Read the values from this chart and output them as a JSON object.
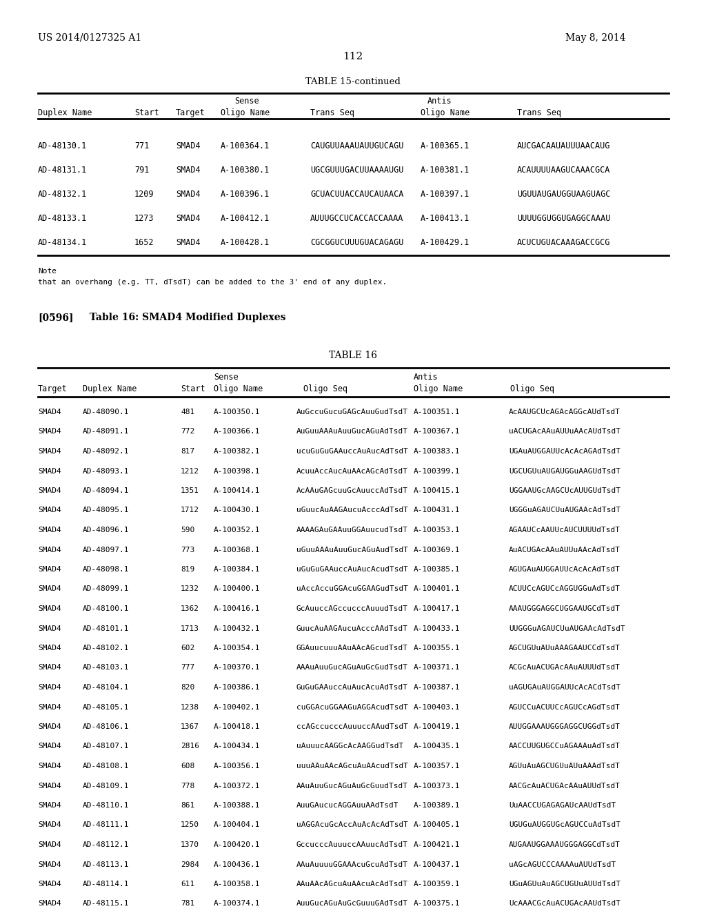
{
  "page_header_left": "US 2014/0127325 A1",
  "page_header_right": "May 8, 2014",
  "page_number": "112",
  "table15_title": "TABLE 15-continued",
  "table15_rows": [
    [
      "AD-48130.1",
      "771",
      "SMAD4",
      "A-100364.1",
      "CAUGUUAAAUAUUGUCAGU",
      "A-100365.1",
      "AUCGACAAUAUUUAACAUG"
    ],
    [
      "AD-48131.1",
      "791",
      "SMAD4",
      "A-100380.1",
      "UGCGUUUGACUUAAAAUGU",
      "A-100381.1",
      "ACAUUUUAAGUCAAACGCA"
    ],
    [
      "AD-48132.1",
      "1209",
      "SMAD4",
      "A-100396.1",
      "GCUACUUACCAUCAUAACA",
      "A-100397.1",
      "UGUUAUGAUGGUAAGUAGC"
    ],
    [
      "AD-48133.1",
      "1273",
      "SMAD4",
      "A-100412.1",
      "AUUUGCCUCACCACCAAAA",
      "A-100413.1",
      "UUUUGGUGGUGAGGCAAAU"
    ],
    [
      "AD-48134.1",
      "1652",
      "SMAD4",
      "A-100428.1",
      "CGCGGUCUUUGUACAGAGU",
      "A-100429.1",
      "ACUCUGUACAAAGACCGCG"
    ]
  ],
  "note_line1": "Note",
  "note_line2": "that an overhang (e.g. TT, dTsdT) can be added to the 3' end of any duplex.",
  "ref_tag": "[0596]",
  "ref_text": "Table 16: SMAD4 Modified Duplexes",
  "table16_title": "TABLE 16",
  "table16_rows": [
    [
      "SMAD4",
      "AD-48090.1",
      "481",
      "A-100350.1",
      "AuGccuGucuGAGcAuuGudTsdT",
      "A-100351.1",
      "AcAAUGCUcAGAcAGGcAUdTsdT"
    ],
    [
      "SMAD4",
      "AD-48091.1",
      "772",
      "A-100366.1",
      "AuGuuAAAuAuuGucAGuAdTsdT",
      "A-100367.1",
      "uACUGAcAAuAUUuAAcAUdTsdT"
    ],
    [
      "SMAD4",
      "AD-48092.1",
      "817",
      "A-100382.1",
      "ucuGuGuGAAuccAuAucAdTsdT",
      "A-100383.1",
      "UGAuAUGGAUUcAcAcAGAdTsdT"
    ],
    [
      "SMAD4",
      "AD-48093.1",
      "1212",
      "A-100398.1",
      "AcuuAccAucAuAAcAGcAdTsdT",
      "A-100399.1",
      "UGCUGUuAUGAUGGuAAGUdTsdT"
    ],
    [
      "SMAD4",
      "AD-48094.1",
      "1351",
      "A-100414.1",
      "AcAAuGAGcuuGcAuuccAdTsdT",
      "A-100415.1",
      "UGGAAUGcAAGCUcAUUGUdTsdT"
    ],
    [
      "SMAD4",
      "AD-48095.1",
      "1712",
      "A-100430.1",
      "uGuucAuAAGAucuAcccAdTsdT",
      "A-100431.1",
      "UGGGuAGAUCUuAUGAAcAdTsdT"
    ],
    [
      "SMAD4",
      "AD-48096.1",
      "590",
      "A-100352.1",
      "AAAAGAuGAAuuGGAuucudTsdT",
      "A-100353.1",
      "AGAAUCcAAUUcAUCUUUUdTsdT"
    ],
    [
      "SMAD4",
      "AD-48097.1",
      "773",
      "A-100368.1",
      "uGuuAAAuAuuGucAGuAudTsdT",
      "A-100369.1",
      "AuACUGAcAAuAUUuAAcAdTsdT"
    ],
    [
      "SMAD4",
      "AD-48098.1",
      "819",
      "A-100384.1",
      "uGuGuGAAuccAuAucAcudTsdT",
      "A-100385.1",
      "AGUGAuAUGGAUUcAcAcAdTsdT"
    ],
    [
      "SMAD4",
      "AD-48099.1",
      "1232",
      "A-100400.1",
      "uAccAccuGGAcuGGAAGudTsdT",
      "A-100401.1",
      "ACUUCcAGUCcAGGUGGuAdTsdT"
    ],
    [
      "SMAD4",
      "AD-48100.1",
      "1362",
      "A-100416.1",
      "GcAuuccAGccucccAuuudTsdT",
      "A-100417.1",
      "AAAUGGGAGGCUGGAAUGCdTsdT"
    ],
    [
      "SMAD4",
      "AD-48101.1",
      "1713",
      "A-100432.1",
      "GuucAuAAGAucuAcccAAdTsdT",
      "A-100433.1",
      "UUGGGuAGAUCUuAUGAAcAdTsdT"
    ],
    [
      "SMAD4",
      "AD-48102.1",
      "602",
      "A-100354.1",
      "GGAuucuuuAAuAAcAGcudTsdT",
      "A-100355.1",
      "AGCUGUuAUuAAAGAAUCCdTsdT"
    ],
    [
      "SMAD4",
      "AD-48103.1",
      "777",
      "A-100370.1",
      "AAAuAuuGucAGuAuGcGudTsdT",
      "A-100371.1",
      "ACGcAuACUGAcAAuAUUUdTsdT"
    ],
    [
      "SMAD4",
      "AD-48104.1",
      "820",
      "A-100386.1",
      "GuGuGAAuccAuAucAcuAdTsdT",
      "A-100387.1",
      "uAGUGAuAUGGAUUcAcACdTsdT"
    ],
    [
      "SMAD4",
      "AD-48105.1",
      "1238",
      "A-100402.1",
      "cuGGAcuGGAAGuAGGAcudTsdT",
      "A-100403.1",
      "AGUCCuACUUCcAGUCcAGdTsdT"
    ],
    [
      "SMAD4",
      "AD-48106.1",
      "1367",
      "A-100418.1",
      "ccAGccucccAuuuccAAudTsdT",
      "A-100419.1",
      "AUUGGAAAUGGGAGGCUGGdTsdT"
    ],
    [
      "SMAD4",
      "AD-48107.1",
      "2816",
      "A-100434.1",
      "uAuuucAAGGcAcAAGGudTsdT",
      "A-100435.1",
      "AACCUUGUGCCuAGAAAuAdTsdT"
    ],
    [
      "SMAD4",
      "AD-48108.1",
      "608",
      "A-100356.1",
      "uuuAAuAAcAGcuAuAAcudTsdT",
      "A-100357.1",
      "AGUuAuAGCUGUuAUuAAAdTsdT"
    ],
    [
      "SMAD4",
      "AD-48109.1",
      "778",
      "A-100372.1",
      "AAuAuuGucAGuAuGcGuudTsdT",
      "A-100373.1",
      "AACGcAuACUGAcAAuAUUdTsdT"
    ],
    [
      "SMAD4",
      "AD-48110.1",
      "861",
      "A-100388.1",
      "AuuGAucucAGGAuuAAdTsdT",
      "A-100389.1",
      "UuAACCUGAGAGAUcAAUdTsdT"
    ],
    [
      "SMAD4",
      "AD-48111.1",
      "1250",
      "A-100404.1",
      "uAGGAcuGcAccAuAcAcAdTsdT",
      "A-100405.1",
      "UGUGuAUGGUGcAGUCCuAdTsdT"
    ],
    [
      "SMAD4",
      "AD-48112.1",
      "1370",
      "A-100420.1",
      "GccucccAuuuccAAuucAdTsdT",
      "A-100421.1",
      "AUGAAUGGAAAUGGGAGGCdTsdT"
    ],
    [
      "SMAD4",
      "AD-48113.1",
      "2984",
      "A-100436.1",
      "AAuAuuuuGGAAAcuGcuAdTsdT",
      "A-100437.1",
      "uAGcAGUCCCAAAAuAUUdTsdT"
    ],
    [
      "SMAD4",
      "AD-48114.1",
      "611",
      "A-100358.1",
      "AAuAAcAGcuAuAAcuAcAdTsdT",
      "A-100359.1",
      "UGuAGUuAuAGCUGUuAUUdTsdT"
    ],
    [
      "SMAD4",
      "AD-48115.1",
      "781",
      "A-100374.1",
      "AuuGucAGuAuGcGuuuGAdTsdT",
      "A-100375.1",
      "UcAAACGcAuACUGAcAAUdTsdT"
    ]
  ],
  "bg_color": "#ffffff"
}
